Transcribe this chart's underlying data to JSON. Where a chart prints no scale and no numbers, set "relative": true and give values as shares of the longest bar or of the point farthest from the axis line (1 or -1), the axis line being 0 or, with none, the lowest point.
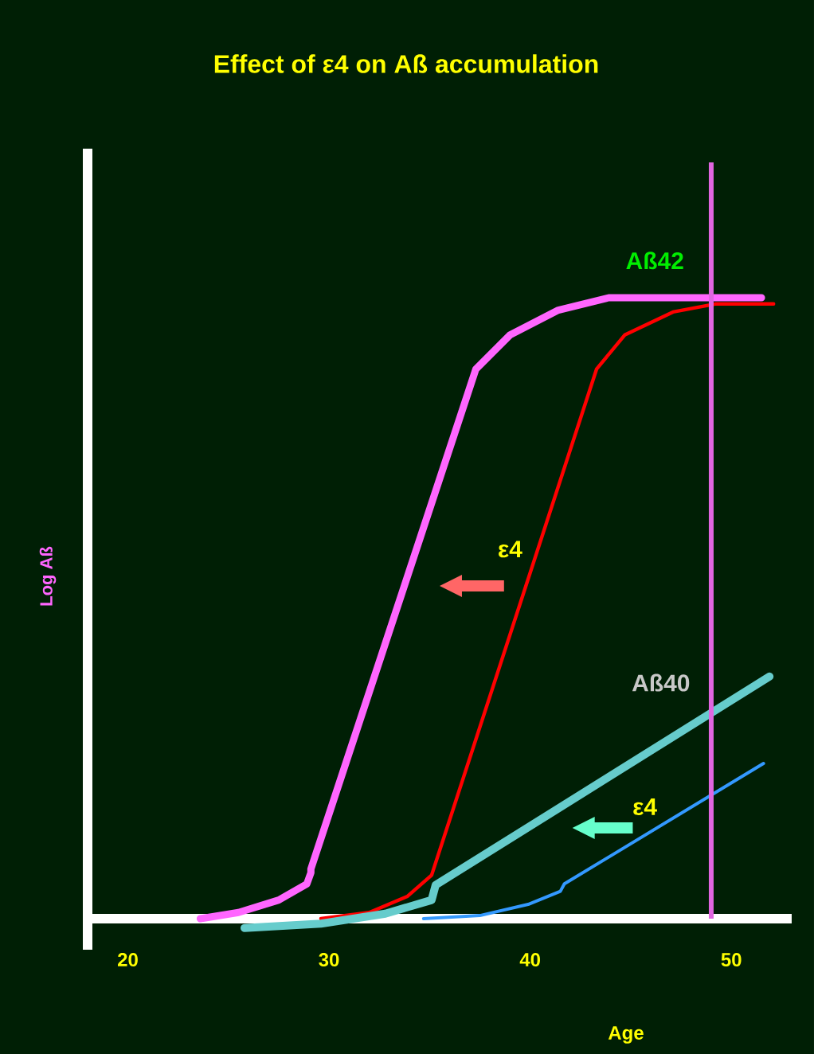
{
  "chart_data": {
    "type": "line",
    "title": "Effect of ε4 on Aß accumulation",
    "xlabel": "Age",
    "ylabel": "Log Aß",
    "relative": true,
    "xlim": [
      18,
      53
    ],
    "xticks": [
      20,
      30,
      40,
      50
    ],
    "marker": "none",
    "grid": false,
    "series": [
      {
        "color": "#ff66ff",
        "x": [
          23.6,
          25.5,
          27.5,
          28.9,
          29.1,
          29.1,
          37.3,
          39.0,
          41.4,
          43.9,
          51.5
        ],
        "values": [
          0,
          0.01,
          0.03,
          0.056,
          0.074,
          0.08,
          0.885,
          0.94,
          0.98,
          1.0,
          1.0
        ]
      },
      {
        "color": "#ff0000",
        "x": [
          29.6,
          32.0,
          33.9,
          35.1,
          43.3,
          44.7,
          47.1,
          49.2,
          52.1
        ],
        "values": [
          0,
          0.01,
          0.036,
          0.07,
          0.885,
          0.94,
          0.977,
          0.99,
          0.99
        ]
      },
      {
        "color": "#66cccc",
        "x": [
          25.8,
          29.6,
          32.8,
          35.1,
          35.3,
          51.9
        ],
        "values": [
          -0.015,
          -0.008,
          0.008,
          0.03,
          0.054,
          0.39
        ]
      },
      {
        "color": "#3399ff",
        "x": [
          34.7,
          37.5,
          39.9,
          41.5,
          41.7,
          51.6
        ],
        "values": [
          0,
          0.005,
          0.023,
          0.044,
          0.056,
          0.25
        ]
      }
    ],
    "ref_lines": [
      {
        "axis": "x",
        "value": 49,
        "color": "#e066e0"
      }
    ],
    "annotations": [
      "Aß42",
      "ε4",
      "Aß40",
      "ε4"
    ]
  }
}
